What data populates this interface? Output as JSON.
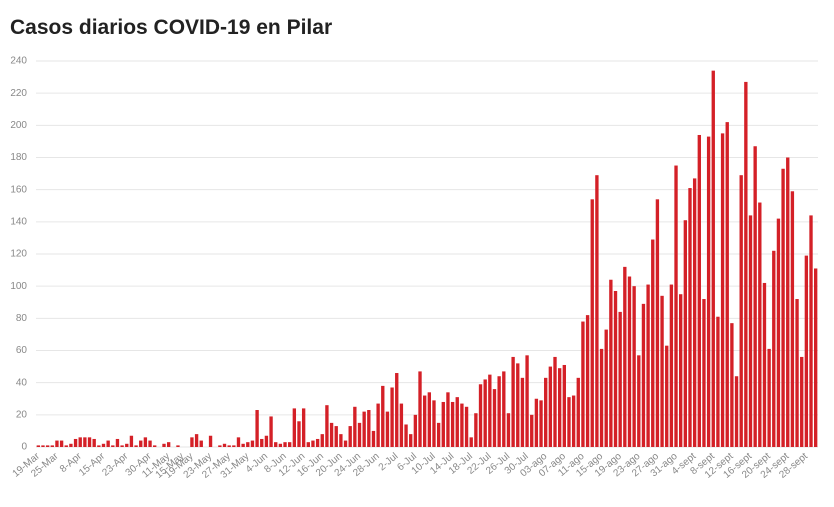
{
  "chart_data": {
    "type": "bar",
    "title": "Casos diarios COVID-19 en Pilar",
    "categories": [
      "19-Mar",
      null,
      null,
      null,
      "25-Mar",
      null,
      null,
      null,
      null,
      "8-Apr",
      null,
      null,
      null,
      null,
      "15-Apr",
      null,
      null,
      null,
      null,
      "23-Apr",
      null,
      null,
      null,
      null,
      "30-Apr",
      null,
      null,
      null,
      "11-May",
      null,
      null,
      "15-May",
      null,
      "19-May",
      null,
      null,
      null,
      "23-May",
      null,
      null,
      null,
      "27-May",
      null,
      null,
      null,
      "31-May",
      null,
      null,
      null,
      "4-Jun",
      null,
      null,
      null,
      "8-Jun",
      null,
      null,
      null,
      "12-Jun",
      null,
      null,
      null,
      "16-Jun",
      null,
      null,
      null,
      "20-Jun",
      null,
      null,
      null,
      "24-Jun",
      null,
      null,
      null,
      "28-Jun",
      null,
      null,
      null,
      "2-Jul",
      null,
      null,
      null,
      "6-Jul",
      null,
      null,
      null,
      "10-Jul",
      null,
      null,
      null,
      "14-Jul",
      null,
      null,
      null,
      "18-Jul",
      null,
      null,
      null,
      "22-Jul",
      null,
      null,
      null,
      "26-Jul",
      null,
      null,
      null,
      "30-Jul",
      null,
      null,
      null,
      "03-ago",
      null,
      null,
      null,
      "07-ago",
      null,
      null,
      null,
      "11-ago",
      null,
      null,
      null,
      "15-ago",
      null,
      null,
      null,
      "19-ago",
      null,
      null,
      null,
      "23-ago",
      null,
      null,
      null,
      "27-ago",
      null,
      null,
      null,
      "31-ago",
      null,
      null,
      null,
      "4-sept",
      null,
      null,
      null,
      "8-sept",
      null,
      null,
      null,
      "12-sept",
      null,
      null,
      null,
      "16-sept",
      null,
      null,
      null,
      "20-sept",
      null,
      null,
      null,
      "24-sept",
      null,
      null,
      null,
      "28-sept",
      null,
      null
    ],
    "values": [
      1,
      1,
      1,
      1,
      4,
      4,
      1,
      2,
      5,
      6,
      6,
      6,
      5,
      1,
      2,
      4,
      1,
      5,
      1,
      2,
      7,
      1,
      4,
      6,
      4,
      1,
      0,
      2,
      3,
      0,
      1,
      0,
      0,
      6,
      8,
      4,
      0,
      7,
      0,
      1,
      2,
      1,
      1,
      6,
      2,
      3,
      4,
      23,
      5,
      7,
      19,
      3,
      2,
      3,
      3,
      24,
      16,
      24,
      3,
      4,
      5,
      8,
      26,
      15,
      13,
      8,
      4,
      13,
      25,
      15,
      22,
      23,
      10,
      27,
      38,
      22,
      37,
      46,
      27,
      14,
      8,
      20,
      47,
      32,
      34,
      29,
      15,
      28,
      34,
      28,
      31,
      27,
      25,
      6,
      21,
      39,
      42,
      45,
      36,
      44,
      47,
      21,
      56,
      52,
      43,
      57,
      20,
      30,
      29,
      43,
      50,
      56,
      49,
      51,
      31,
      32,
      43,
      78,
      82,
      154,
      169,
      61,
      73,
      104,
      97,
      84,
      112,
      106,
      100,
      57,
      89,
      101,
      129,
      154,
      94,
      63,
      101,
      175,
      95,
      141,
      161,
      167,
      194,
      92,
      193,
      234,
      81,
      195,
      202,
      77,
      44,
      169,
      227,
      144,
      187,
      152,
      102,
      61,
      122,
      142,
      173,
      180,
      159,
      92,
      56,
      119,
      144,
      111
    ],
    "color": "#d42027",
    "ylim": [
      0,
      240
    ],
    "yticks": [
      0,
      20,
      40,
      60,
      80,
      100,
      120,
      140,
      160,
      180,
      200,
      220,
      240
    ],
    "grid": true
  }
}
